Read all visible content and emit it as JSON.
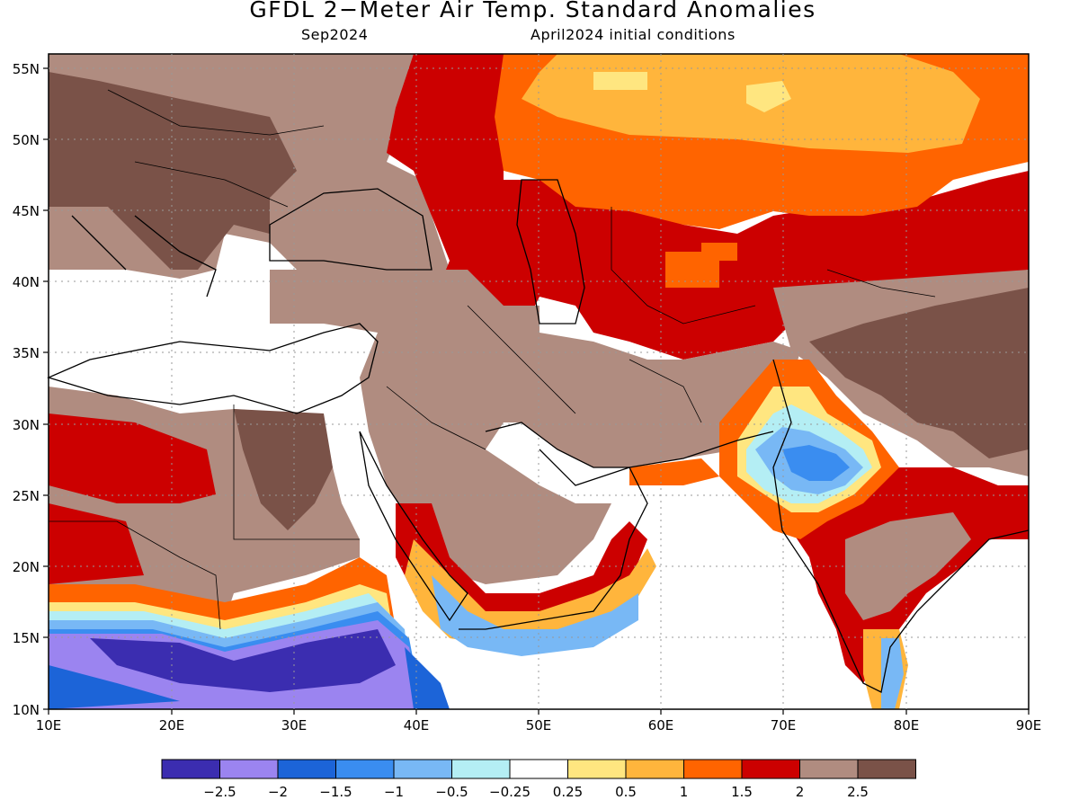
{
  "header": {
    "title": "GFDL 2−Meter Air Temp. Standard Anomalies",
    "valid_month": "Sep2024",
    "init_conditions": "April2024 initial conditions"
  },
  "axes": {
    "lon_labels": [
      "10E",
      "20E",
      "30E",
      "40E",
      "50E",
      "60E",
      "70E",
      "80E",
      "90E"
    ],
    "lat_labels": [
      "10N",
      "15N",
      "20N",
      "25N",
      "30N",
      "35N",
      "40N",
      "45N",
      "50N",
      "55N"
    ]
  },
  "legend": {
    "colors": [
      "#3b2db0",
      "#9b84f0",
      "#1c64d8",
      "#3a8df0",
      "#78b8f5",
      "#b4eef4",
      "#ffffff",
      "#ffe680",
      "#ffb53c",
      "#ff6400",
      "#cc0000",
      "#b08c80",
      "#7a5248"
    ],
    "labels": [
      "−2.5",
      "−2",
      "−1.5",
      "−1",
      "−0.5",
      "−0.25",
      "0.25",
      "0.5",
      "1",
      "1.5",
      "2",
      "2.5"
    ]
  },
  "map_data": {
    "region": "Mediterranean, Middle East and South Asia",
    "lon_range": [
      10,
      90
    ],
    "lat_range": [
      10,
      56
    ],
    "variable": "2-meter air temperature standardized anomaly",
    "dominant_features": [
      "warm anomalies (+1 to +2.5) over Central Asia and Russia",
      "strong positive anomalies (+2 to +2.5) over Europe, Arabia, Iran and Tibet",
      "cold anomalies (-0.5 to -2.5) over the Sahel and NW India / Pakistan"
    ]
  }
}
